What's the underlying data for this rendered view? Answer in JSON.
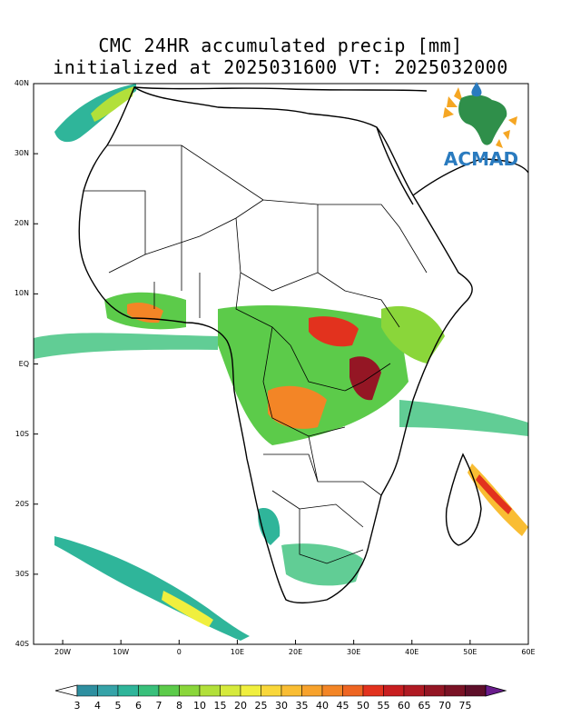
{
  "title_line1": "CMC 24HR accumulated precip [mm]",
  "title_line2": "initialized at 2025031600 VT: 2025032000",
  "y_ticks": [
    "40N",
    "30N",
    "20N",
    "10N",
    "EQ",
    "10S",
    "20S",
    "30S",
    "40S"
  ],
  "x_ticks": [
    "20W",
    "10W",
    "0",
    "10E",
    "20E",
    "30E",
    "40E",
    "50E",
    "60E"
  ],
  "logo_text": "ACMAD",
  "colorbar": {
    "labels": [
      "3",
      "4",
      "5",
      "6",
      "7",
      "8",
      "10",
      "15",
      "20",
      "25",
      "30",
      "35",
      "40",
      "45",
      "50",
      "55",
      "60",
      "65",
      "70",
      "75"
    ],
    "colors": [
      "#2e8fa0",
      "#36a3a8",
      "#2fb59a",
      "#39c07b",
      "#5ccb4a",
      "#8ad63a",
      "#b2e03a",
      "#d6ea3c",
      "#f0ef3e",
      "#f9d73a",
      "#f9bd33",
      "#f7a22c",
      "#f38526",
      "#ee6522",
      "#e2321e",
      "#c81e20",
      "#b01a23",
      "#941624",
      "#7a1225",
      "#5e0f2a",
      "#6a1c8c"
    ]
  },
  "map": {
    "lon_range": [
      -25,
      60
    ],
    "lat_range": [
      -40,
      40
    ]
  }
}
